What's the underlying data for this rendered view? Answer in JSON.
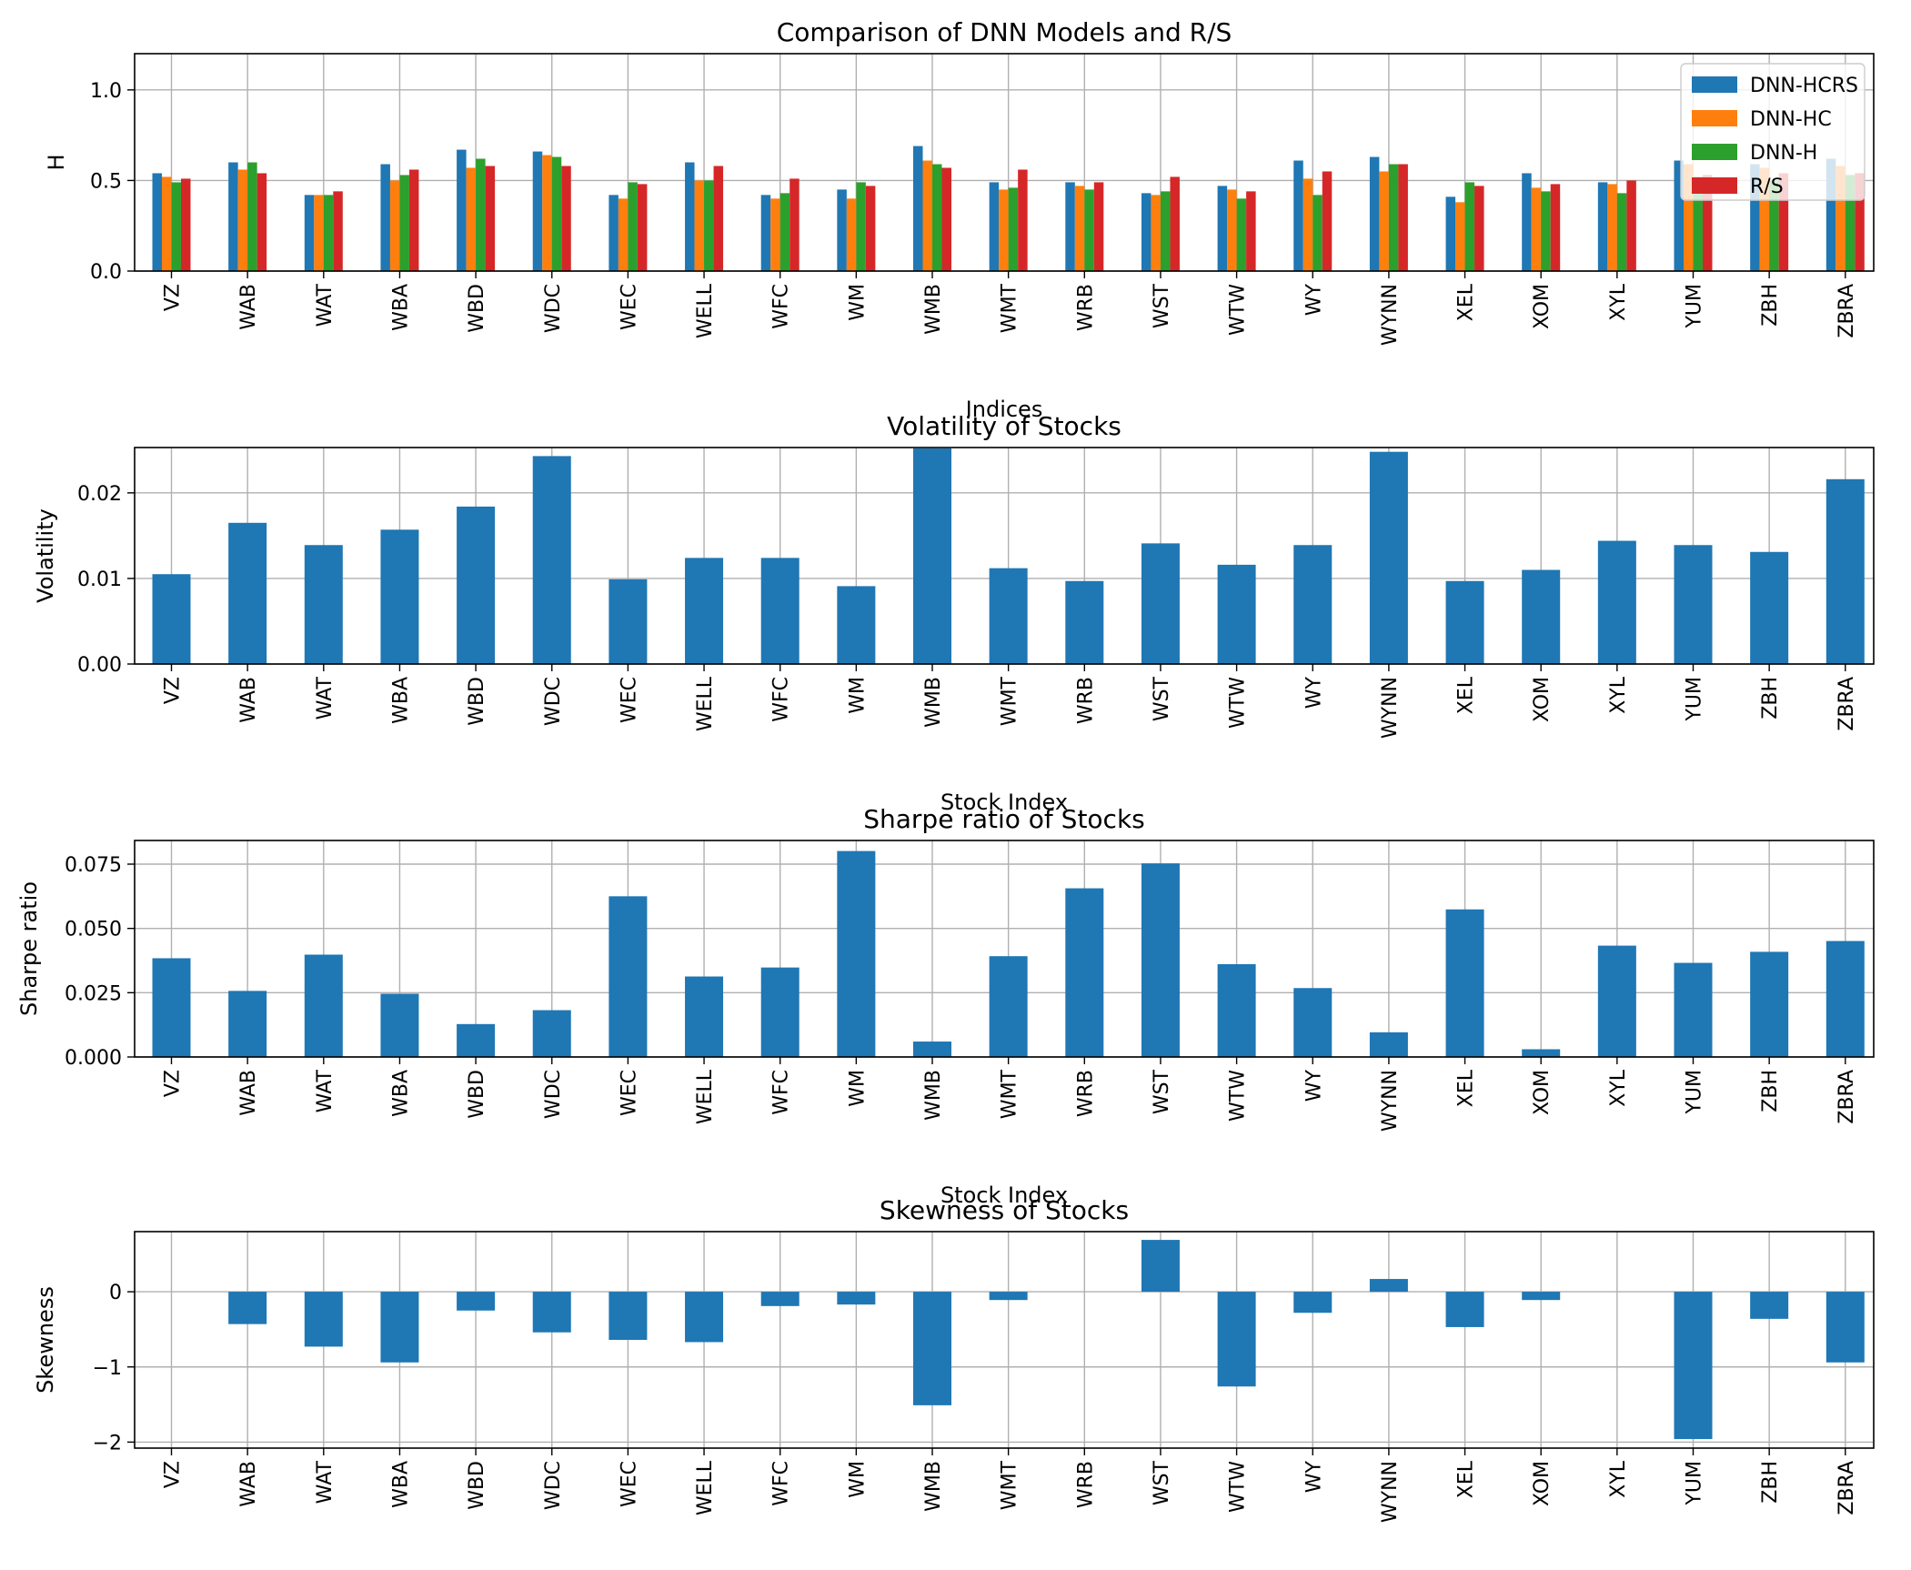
{
  "chart_data": [
    {
      "type": "bar",
      "title": "Comparison of DNN Models and R/S",
      "xlabel": "Indices",
      "ylabel": "H",
      "ylim": [
        0,
        1.2
      ],
      "yticks": [
        0.0,
        0.5,
        1.0
      ],
      "ytick_labels": [
        "0.0",
        "0.5",
        "1.0"
      ],
      "grid": true,
      "legend_position": "top-right",
      "categories": [
        "VZ",
        "WAB",
        "WAT",
        "WBA",
        "WBD",
        "WDC",
        "WEC",
        "WELL",
        "WFC",
        "WM",
        "WMB",
        "WMT",
        "WRB",
        "WST",
        "WTW",
        "WY",
        "WYNN",
        "XEL",
        "XOM",
        "XYL",
        "YUM",
        "ZBH",
        "ZBRA"
      ],
      "series": [
        {
          "name": "DNN-HCRS",
          "color": "#1f77b4",
          "values": [
            0.54,
            0.6,
            0.42,
            0.59,
            0.67,
            0.66,
            0.42,
            0.6,
            0.42,
            0.45,
            0.69,
            0.49,
            0.49,
            0.43,
            0.47,
            0.61,
            0.63,
            0.41,
            0.54,
            0.49,
            0.61,
            0.59,
            0.62
          ]
        },
        {
          "name": "DNN-HC",
          "color": "#ff7f0e",
          "values": [
            0.52,
            0.56,
            0.42,
            0.5,
            0.57,
            0.64,
            0.4,
            0.5,
            0.4,
            0.4,
            0.61,
            0.45,
            0.47,
            0.42,
            0.45,
            0.51,
            0.55,
            0.38,
            0.46,
            0.48,
            0.59,
            0.57,
            0.58
          ]
        },
        {
          "name": "DNN-H",
          "color": "#2ca02c",
          "values": [
            0.49,
            0.6,
            0.42,
            0.53,
            0.62,
            0.63,
            0.49,
            0.5,
            0.43,
            0.49,
            0.59,
            0.46,
            0.45,
            0.44,
            0.4,
            0.42,
            0.59,
            0.49,
            0.44,
            0.43,
            0.52,
            0.5,
            0.53
          ]
        },
        {
          "name": "R/S",
          "color": "#d62728",
          "values": [
            0.51,
            0.54,
            0.44,
            0.56,
            0.58,
            0.58,
            0.48,
            0.58,
            0.51,
            0.47,
            0.57,
            0.56,
            0.49,
            0.52,
            0.44,
            0.55,
            0.59,
            0.47,
            0.48,
            0.5,
            0.53,
            0.54,
            0.54
          ]
        }
      ]
    },
    {
      "type": "bar",
      "title": "Volatility of Stocks",
      "xlabel": "Stock Index",
      "ylabel": "Volatility",
      "ylim": [
        0,
        0.0253
      ],
      "yticks": [
        0.0,
        0.01,
        0.02
      ],
      "ytick_labels": [
        "0.00",
        "0.01",
        "0.02"
      ],
      "grid": true,
      "categories": [
        "VZ",
        "WAB",
        "WAT",
        "WBA",
        "WBD",
        "WDC",
        "WEC",
        "WELL",
        "WFC",
        "WM",
        "WMB",
        "WMT",
        "WRB",
        "WST",
        "WTW",
        "WY",
        "WYNN",
        "XEL",
        "XOM",
        "XYL",
        "YUM",
        "ZBH",
        "ZBRA"
      ],
      "series": [
        {
          "name": "Volatility",
          "color": "#1f77b4",
          "values": [
            0.0105,
            0.0165,
            0.0139,
            0.0157,
            0.0184,
            0.0243,
            0.0099,
            0.0124,
            0.0124,
            0.0091,
            0.0252,
            0.0112,
            0.0097,
            0.0141,
            0.0116,
            0.0139,
            0.0248,
            0.0097,
            0.011,
            0.0144,
            0.0139,
            0.0131,
            0.0216
          ]
        }
      ]
    },
    {
      "type": "bar",
      "title": "Sharpe ratio of Stocks",
      "xlabel": "Stock Index",
      "ylabel": "Sharpe ratio",
      "ylim": [
        0,
        0.0842
      ],
      "yticks": [
        0.0,
        0.025,
        0.05,
        0.075
      ],
      "ytick_labels": [
        "0.000",
        "0.025",
        "0.050",
        "0.075"
      ],
      "grid": true,
      "categories": [
        "VZ",
        "WAB",
        "WAT",
        "WBA",
        "WBD",
        "WDC",
        "WEC",
        "WELL",
        "WFC",
        "WM",
        "WMB",
        "WMT",
        "WRB",
        "WST",
        "WTW",
        "WY",
        "WYNN",
        "XEL",
        "XOM",
        "XYL",
        "YUM",
        "ZBH",
        "ZBRA"
      ],
      "series": [
        {
          "name": "Sharpe ratio",
          "color": "#1f77b4",
          "values": [
            0.0384,
            0.0257,
            0.0398,
            0.0246,
            0.0128,
            0.0182,
            0.0625,
            0.0313,
            0.0348,
            0.0801,
            0.006,
            0.0392,
            0.0656,
            0.0753,
            0.0361,
            0.0268,
            0.0096,
            0.0574,
            0.003,
            0.0433,
            0.0366,
            0.0409,
            0.0451
          ]
        }
      ]
    },
    {
      "type": "bar",
      "title": "Skewness of Stocks",
      "xlabel": "Stock Index",
      "ylabel": "Skewness",
      "ylim": [
        -2.08,
        0.8
      ],
      "yticks": [
        -2,
        -1,
        0
      ],
      "ytick_labels": [
        "−2",
        "−1",
        "0"
      ],
      "grid": true,
      "categories": [
        "VZ",
        "WAB",
        "WAT",
        "WBA",
        "WBD",
        "WDC",
        "WEC",
        "WELL",
        "WFC",
        "WM",
        "WMB",
        "WMT",
        "WRB",
        "WST",
        "WTW",
        "WY",
        "WYNN",
        "XEL",
        "XOM",
        "XYL",
        "YUM",
        "ZBH",
        "ZBRA"
      ],
      "series": [
        {
          "name": "Skewness",
          "color": "#1f77b4",
          "values": [
            0.0,
            -0.43,
            -0.73,
            -0.94,
            -0.25,
            -0.54,
            -0.64,
            -0.67,
            -0.19,
            -0.17,
            -1.51,
            -0.11,
            0.0,
            0.69,
            -1.26,
            -0.28,
            0.17,
            -0.47,
            -0.11,
            0.0,
            -1.96,
            -0.36,
            -0.94
          ]
        }
      ]
    }
  ]
}
